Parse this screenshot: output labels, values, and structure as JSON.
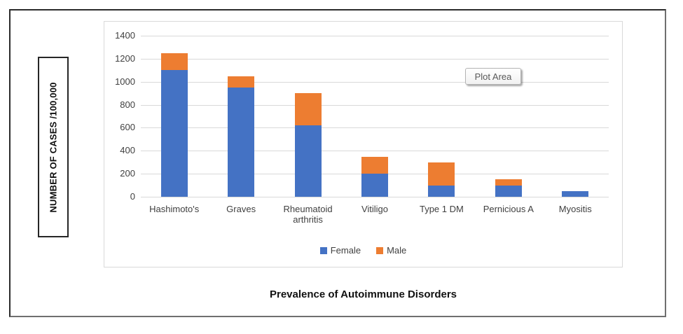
{
  "title": "Prevalence of Autoimmune Disorders",
  "tooltip": {
    "label": "Plot Area"
  },
  "colors": {
    "female": "#4472C4",
    "male": "#ED7D31",
    "gridline": "#D9D9D9",
    "axis_text": "#404040",
    "chart_border": "#D9D9D9",
    "frame_border": "#2B2B2B",
    "tooltip_text": "#595959"
  },
  "chart_data": {
    "type": "bar",
    "stacked": true,
    "title": "Prevalence of Autoimmune Disorders",
    "ylabel": "NUMBER OF CASES /100,000",
    "xlabel": "",
    "categories": [
      "Hashimoto's",
      "Graves",
      "Rheumatoid arthritis",
      "Vitiligo",
      "Type 1 DM",
      "Pernicious A",
      "Myositis"
    ],
    "series": [
      {
        "name": "Female",
        "color": "#4472C4",
        "values": [
          1100,
          950,
          620,
          200,
          100,
          100,
          50
        ]
      },
      {
        "name": "Male",
        "color": "#ED7D31",
        "values": [
          150,
          100,
          280,
          150,
          200,
          50,
          0
        ]
      }
    ],
    "ylim": [
      0,
      1400
    ],
    "yticks": [
      0,
      200,
      400,
      600,
      800,
      1000,
      1200,
      1400
    ],
    "grid": true,
    "legend_position": "bottom-center"
  }
}
